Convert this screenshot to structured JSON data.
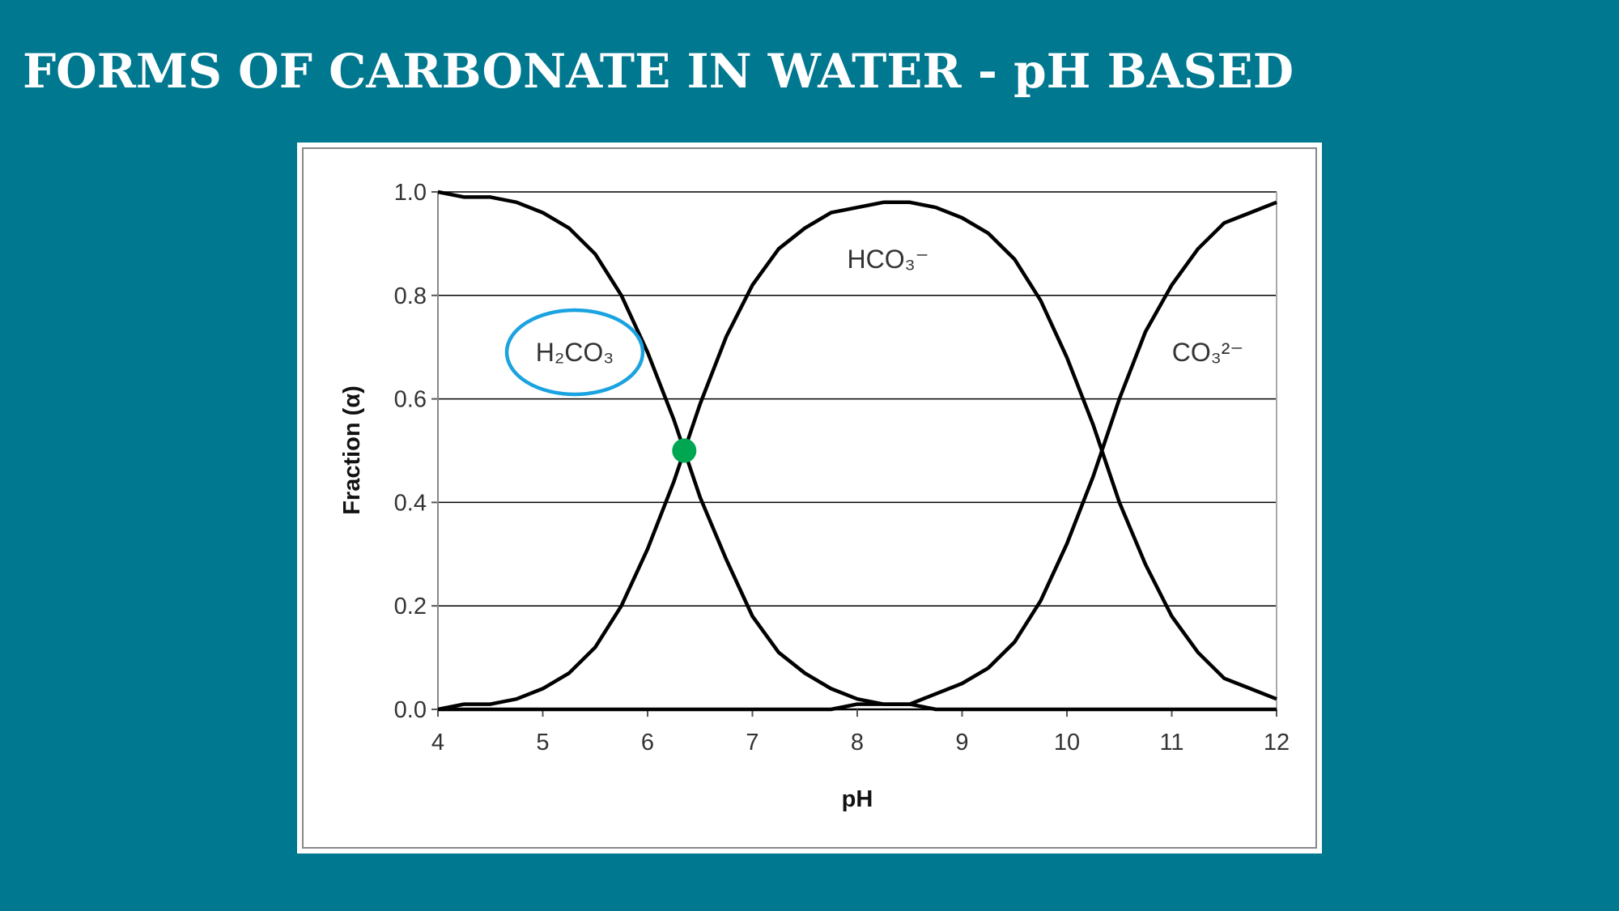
{
  "chart_data": {
    "type": "line",
    "title": "FORMS OF CARBONATE IN WATER - pH BASED",
    "x_label": "pH",
    "y_label": "Fraction (α)",
    "x": [
      4,
      4.25,
      4.5,
      4.75,
      5,
      5.25,
      5.5,
      5.75,
      6,
      6.25,
      6.5,
      6.75,
      7,
      7.25,
      7.5,
      7.75,
      8,
      8.25,
      8.5,
      8.75,
      9,
      9.25,
      9.5,
      9.75,
      10,
      10.25,
      10.5,
      10.75,
      11,
      11.25,
      11.5,
      11.75,
      12
    ],
    "series": [
      {
        "name": "H₂CO₃",
        "color": "#000000",
        "values": [
          1.0,
          0.99,
          0.99,
          0.98,
          0.96,
          0.93,
          0.88,
          0.8,
          0.69,
          0.56,
          0.41,
          0.29,
          0.18,
          0.11,
          0.07,
          0.04,
          0.02,
          0.01,
          0.01,
          0.0,
          0.0,
          0.0,
          0.0,
          0.0,
          0.0,
          0.0,
          0.0,
          0.0,
          0.0,
          0.0,
          0.0,
          0.0,
          0.0
        ]
      },
      {
        "name": "HCO₃⁻",
        "color": "#000000",
        "values": [
          0.0,
          0.01,
          0.01,
          0.02,
          0.04,
          0.07,
          0.12,
          0.2,
          0.31,
          0.44,
          0.59,
          0.72,
          0.82,
          0.89,
          0.93,
          0.96,
          0.97,
          0.98,
          0.98,
          0.97,
          0.95,
          0.92,
          0.87,
          0.79,
          0.68,
          0.55,
          0.4,
          0.28,
          0.18,
          0.11,
          0.06,
          0.04,
          0.02
        ]
      },
      {
        "name": "CO₃²⁻",
        "color": "#000000",
        "values": [
          0.0,
          0.0,
          0.0,
          0.0,
          0.0,
          0.0,
          0.0,
          0.0,
          0.0,
          0.0,
          0.0,
          0.0,
          0.0,
          0.0,
          0.0,
          0.0,
          0.01,
          0.01,
          0.01,
          0.03,
          0.05,
          0.08,
          0.13,
          0.21,
          0.32,
          0.45,
          0.6,
          0.73,
          0.82,
          0.89,
          0.94,
          0.96,
          0.98
        ]
      }
    ],
    "marker": {
      "x": 6.35,
      "y": 0.5,
      "color": "#00a651"
    },
    "highlight_color": "#1aa3e0",
    "xlim": [
      4,
      12
    ],
    "ylim": [
      0,
      1
    ],
    "xticks": [
      4,
      5,
      6,
      7,
      8,
      9,
      10,
      11,
      12
    ],
    "yticks": [
      {
        "value": 0,
        "label": "0.0"
      },
      0.2,
      0.4,
      0.6,
      0.8,
      {
        "value": 1,
        "label": "1.0"
      }
    ],
    "grid": true
  }
}
